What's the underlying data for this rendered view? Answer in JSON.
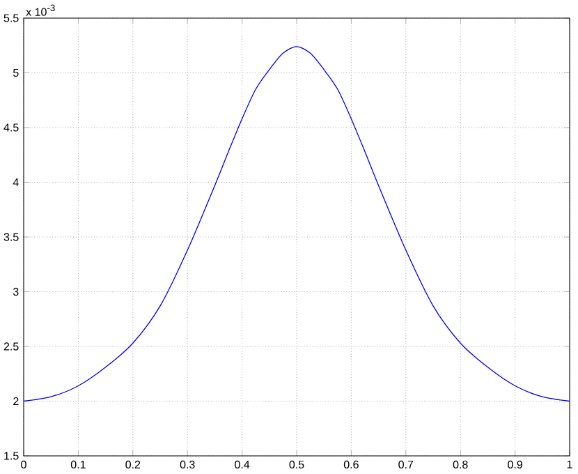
{
  "chart_data": {
    "type": "line",
    "x": [
      0,
      0.05,
      0.1,
      0.15,
      0.2,
      0.25,
      0.3,
      0.35,
      0.375,
      0.4,
      0.425,
      0.45,
      0.475,
      0.5,
      0.525,
      0.55,
      0.575,
      0.6,
      0.625,
      0.65,
      0.7,
      0.75,
      0.8,
      0.85,
      0.9,
      0.95,
      1
    ],
    "series": [
      {
        "color": "#0000ff",
        "values": [
          2.0,
          2.04,
          2.14,
          2.31,
          2.53,
          2.87,
          3.38,
          3.97,
          4.28,
          4.58,
          4.85,
          5.03,
          5.18,
          5.24,
          5.18,
          5.03,
          4.85,
          4.58,
          4.28,
          3.97,
          3.38,
          2.87,
          2.53,
          2.31,
          2.14,
          2.04,
          2.0
        ]
      }
    ],
    "xlim": [
      0,
      1
    ],
    "ylim": [
      1.5,
      5.5
    ],
    "xticks": [
      0,
      0.1,
      0.2,
      0.3,
      0.4,
      0.5,
      0.6,
      0.7,
      0.8,
      0.9,
      1
    ],
    "yticks": [
      1.5,
      2,
      2.5,
      3,
      3.5,
      4,
      4.5,
      5,
      5.5
    ],
    "annotations": [
      "x 10$^{-3}$"
    ],
    "grid": true,
    "line_style": "solid",
    "marker": "none"
  }
}
